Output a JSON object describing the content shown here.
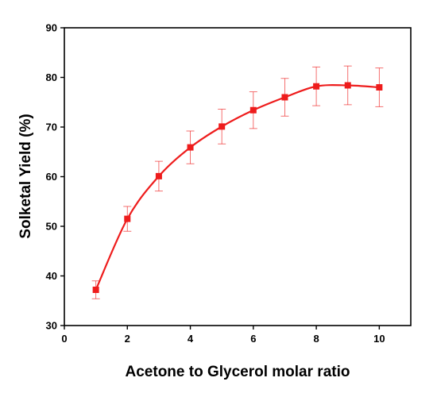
{
  "chart_data": {
    "type": "line",
    "title": "",
    "xlabel": "Acetone to Glycerol molar ratio",
    "ylabel": "Solketal Yield (%)",
    "xlim": [
      0,
      11
    ],
    "ylim": [
      30,
      90
    ],
    "xticks": [
      0,
      2,
      4,
      6,
      8,
      10
    ],
    "yticks": [
      30,
      40,
      50,
      60,
      70,
      80,
      90
    ],
    "grid": false,
    "legend": "none",
    "series": [
      {
        "color": "#ee1c1c",
        "marker": "square",
        "x": [
          1,
          2,
          3,
          4,
          5,
          6,
          7,
          8,
          9,
          10
        ],
        "y": [
          37.2,
          51.5,
          60.1,
          65.9,
          70.1,
          73.4,
          76.0,
          78.2,
          78.4,
          78.0
        ],
        "error": [
          1.8,
          2.5,
          3.0,
          3.3,
          3.5,
          3.7,
          3.8,
          3.9,
          3.9,
          3.9
        ]
      }
    ]
  }
}
